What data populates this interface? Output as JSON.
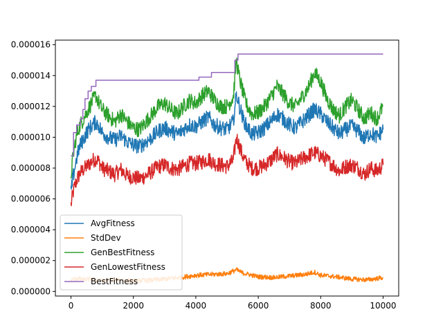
{
  "chart_data": {
    "type": "line",
    "title": "",
    "xlabel": "",
    "ylabel": "",
    "xlim": [
      -500,
      10500
    ],
    "ylim": [
      -3e-07,
      1.63e-05
    ],
    "xticks": [
      0,
      2000,
      4000,
      6000,
      8000,
      10000
    ],
    "xtick_labels": [
      "0",
      "2000",
      "4000",
      "6000",
      "8000",
      "10000"
    ],
    "yticks": [
      0,
      2e-06,
      4e-06,
      6e-06,
      8e-06,
      1e-05,
      1.2e-05,
      1.4e-05,
      1.6e-05
    ],
    "ytick_labels": [
      "0.000000",
      "0.000002",
      "0.000004",
      "0.000006",
      "0.000008",
      "0.000010",
      "0.000012",
      "0.000014",
      "0.000016"
    ],
    "grid": false,
    "legend_position": "lower-left",
    "series": [
      {
        "name": "AvgFitness",
        "color": "#1f77b4",
        "x": [
          0,
          50,
          100,
          150,
          200,
          250,
          300,
          400,
          500,
          600,
          700,
          800,
          900,
          1000,
          1200,
          1400,
          1600,
          1800,
          2000,
          2200,
          2400,
          2600,
          2800,
          3000,
          3200,
          3400,
          3600,
          3800,
          4000,
          4200,
          4400,
          4600,
          4800,
          5000,
          5200,
          5300,
          5400,
          5500,
          5600,
          5800,
          6000,
          6200,
          6400,
          6600,
          6800,
          7000,
          7200,
          7400,
          7600,
          7800,
          8000,
          8200,
          8400,
          8600,
          8800,
          9000,
          9200,
          9400,
          9600,
          9800,
          10000
        ],
        "y": [
          6.4e-06,
          7.2e-06,
          7.8e-06,
          8.3e-06,
          8.8e-06,
          9.2e-06,
          9.5e-06,
          9.9e-06,
          1.03e-05,
          1.06e-05,
          1.08e-05,
          1.1e-05,
          1.07e-05,
          1.03e-05,
          1e-05,
          9.8e-06,
          1.01e-05,
          9.7e-06,
          9.5e-06,
          9.4e-06,
          9.7e-06,
          1e-05,
          1.04e-05,
          1.06e-05,
          1.04e-05,
          1.02e-05,
          1.05e-05,
          1.08e-05,
          1.07e-05,
          1.1e-05,
          1.13e-05,
          1.08e-05,
          1.06e-05,
          1.05e-05,
          1.1e-05,
          1.28e-05,
          1.2e-05,
          1.13e-05,
          1.08e-05,
          1.02e-05,
          1.03e-05,
          1.06e-05,
          1.1e-05,
          1.15e-05,
          1.12e-05,
          1.08e-05,
          1.06e-05,
          1.1e-05,
          1.14e-05,
          1.18e-05,
          1.15e-05,
          1.1e-05,
          1.06e-05,
          1.02e-05,
          1.05e-05,
          1.07e-05,
          1.04e-05,
          9.9e-06,
          1.03e-05,
          1e-05,
          1.05e-05
        ]
      },
      {
        "name": "StdDev",
        "color": "#ff7f0e",
        "x": [
          0,
          100,
          200,
          400,
          600,
          800,
          1000,
          1500,
          2000,
          2500,
          3000,
          3500,
          4000,
          4500,
          5000,
          5300,
          5500,
          6000,
          6500,
          7000,
          7500,
          7800,
          8000,
          8500,
          9000,
          9500,
          10000
        ],
        "y": [
          7e-07,
          8e-07,
          8.5e-07,
          7.5e-07,
          8e-07,
          7.5e-07,
          7e-07,
          7.5e-07,
          6.8e-07,
          7.2e-07,
          8e-07,
          9e-07,
          1.05e-06,
          1.1e-06,
          1.15e-06,
          1.4e-06,
          1.2e-06,
          9.5e-07,
          9e-07,
          1e-06,
          1.1e-06,
          1.25e-06,
          1.05e-06,
          9.5e-07,
          8e-07,
          7.5e-07,
          9e-07
        ]
      },
      {
        "name": "GenBestFitness",
        "color": "#2ca02c",
        "x": [
          0,
          50,
          100,
          150,
          200,
          250,
          300,
          400,
          500,
          600,
          700,
          800,
          900,
          1000,
          1200,
          1400,
          1600,
          1800,
          2000,
          2200,
          2400,
          2600,
          2800,
          3000,
          3200,
          3400,
          3600,
          3800,
          4000,
          4200,
          4400,
          4600,
          4800,
          5000,
          5200,
          5300,
          5400,
          5500,
          5600,
          5800,
          6000,
          6200,
          6400,
          6600,
          6800,
          7000,
          7200,
          7400,
          7600,
          7800,
          8000,
          8200,
          8400,
          8600,
          8800,
          9000,
          9200,
          9400,
          9600,
          9800,
          10000
        ],
        "y": [
          7.5e-06,
          8.5e-06,
          9.2e-06,
          9.8e-06,
          1.02e-05,
          1.06e-05,
          1.08e-05,
          1.12e-05,
          1.16e-05,
          1.2e-05,
          1.24e-05,
          1.27e-05,
          1.22e-05,
          1.18e-05,
          1.14e-05,
          1.1e-05,
          1.15e-05,
          1.1e-05,
          1.06e-05,
          1.05e-05,
          1.1e-05,
          1.15e-05,
          1.2e-05,
          1.22e-05,
          1.18e-05,
          1.15e-05,
          1.2e-05,
          1.24e-05,
          1.22e-05,
          1.27e-05,
          1.3e-05,
          1.24e-05,
          1.2e-05,
          1.2e-05,
          1.26e-05,
          1.5e-05,
          1.38e-05,
          1.3e-05,
          1.22e-05,
          1.15e-05,
          1.16e-05,
          1.2e-05,
          1.26e-05,
          1.33e-05,
          1.28e-05,
          1.22e-05,
          1.2e-05,
          1.26e-05,
          1.32e-05,
          1.42e-05,
          1.36e-05,
          1.25e-05,
          1.18e-05,
          1.14e-05,
          1.2e-05,
          1.24e-05,
          1.18e-05,
          1.12e-05,
          1.16e-05,
          1.12e-05,
          1.2e-05
        ]
      },
      {
        "name": "GenLowestFitness",
        "color": "#d62728",
        "x": [
          0,
          50,
          100,
          150,
          200,
          250,
          300,
          400,
          500,
          600,
          700,
          800,
          900,
          1000,
          1200,
          1400,
          1600,
          1800,
          2000,
          2200,
          2400,
          2600,
          2800,
          3000,
          3200,
          3400,
          3600,
          3800,
          4000,
          4200,
          4400,
          4600,
          4800,
          5000,
          5200,
          5300,
          5400,
          5500,
          5600,
          5800,
          6000,
          6200,
          6400,
          6600,
          6800,
          7000,
          7200,
          7400,
          7600,
          7800,
          8000,
          8200,
          8400,
          8600,
          8800,
          9000,
          9200,
          9400,
          9600,
          9800,
          10000
        ],
        "y": [
          5.6e-06,
          6.2e-06,
          6.7e-06,
          7e-06,
          7.3e-06,
          7.5e-06,
          7.7e-06,
          7.9e-06,
          8.1e-06,
          8.3e-06,
          8.5e-06,
          8.6e-06,
          8.4e-06,
          8e-06,
          7.8e-06,
          7.6e-06,
          7.9e-06,
          7.5e-06,
          7.4e-06,
          7.3e-06,
          7.5e-06,
          7.8e-06,
          8.1e-06,
          8.2e-06,
          8e-06,
          7.9e-06,
          8.1e-06,
          8.3e-06,
          8.3e-06,
          8.4e-06,
          8.6e-06,
          8.3e-06,
          8.2e-06,
          8.1e-06,
          8.5e-06,
          1e-05,
          9.4e-06,
          8.8e-06,
          8.4e-06,
          8e-06,
          8e-06,
          8.2e-06,
          8.5e-06,
          8.9e-06,
          8.7e-06,
          8.4e-06,
          8.3e-06,
          8.6e-06,
          8.8e-06,
          9e-06,
          8.8e-06,
          8.5e-06,
          8.2e-06,
          7.8e-06,
          8.1e-06,
          8.2e-06,
          8e-06,
          7.6e-06,
          8e-06,
          7.8e-06,
          8.2e-06
        ]
      },
      {
        "name": "BestFitness",
        "color": "#9467bd",
        "x": [
          0,
          80,
          80,
          180,
          180,
          300,
          300,
          380,
          380,
          450,
          450,
          550,
          550,
          650,
          650,
          800,
          800,
          4100,
          4100,
          4500,
          4500,
          5250,
          5250,
          5350,
          5350,
          10000
        ],
        "y": [
          8.8e-06,
          8.8e-06,
          1.03e-05,
          1.03e-05,
          1.08e-05,
          1.08e-05,
          1.12e-05,
          1.12e-05,
          1.18e-05,
          1.18e-05,
          1.25e-05,
          1.25e-05,
          1.3e-05,
          1.3e-05,
          1.33e-05,
          1.33e-05,
          1.37e-05,
          1.37e-05,
          1.39e-05,
          1.39e-05,
          1.42e-05,
          1.42e-05,
          1.5e-05,
          1.5e-05,
          1.54e-05,
          1.54e-05
        ]
      }
    ]
  }
}
